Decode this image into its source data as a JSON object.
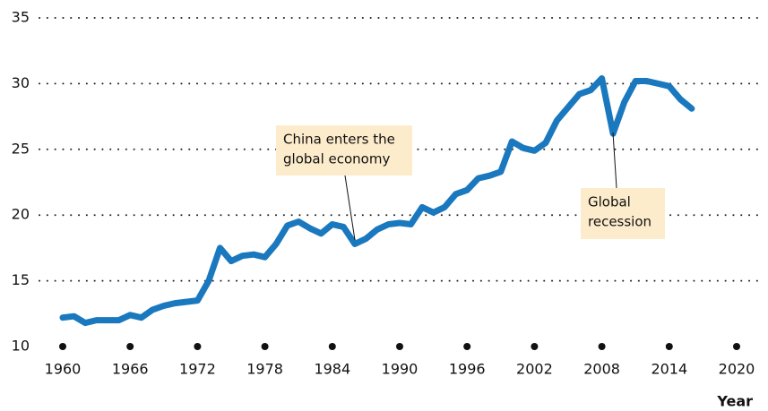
{
  "chart_data": {
    "type": "line",
    "x": [
      1960,
      1961,
      1962,
      1963,
      1964,
      1965,
      1966,
      1967,
      1968,
      1969,
      1970,
      1971,
      1972,
      1973,
      1974,
      1975,
      1976,
      1977,
      1978,
      1979,
      1980,
      1981,
      1982,
      1983,
      1984,
      1985,
      1986,
      1987,
      1988,
      1989,
      1990,
      1991,
      1992,
      1993,
      1994,
      1995,
      1996,
      1997,
      1998,
      1999,
      2000,
      2001,
      2002,
      2003,
      2004,
      2005,
      2006,
      2007,
      2008,
      2009,
      2010,
      2011,
      2012,
      2013,
      2014,
      2015,
      2016
    ],
    "series": [
      {
        "color": "#1a78be",
        "values": [
          12.2,
          12.3,
          11.8,
          12.0,
          12.0,
          12.0,
          12.4,
          12.2,
          12.8,
          13.1,
          13.3,
          13.4,
          13.5,
          15.0,
          17.5,
          16.5,
          16.9,
          17.0,
          16.8,
          17.8,
          19.2,
          19.5,
          19.0,
          18.6,
          19.3,
          19.1,
          17.8,
          18.2,
          18.9,
          19.3,
          19.4,
          19.3,
          20.6,
          20.2,
          20.6,
          21.6,
          21.9,
          22.8,
          23.0,
          23.3,
          25.6,
          25.1,
          24.9,
          25.5,
          27.2,
          28.2,
          29.2,
          29.5,
          30.4,
          26.2,
          28.6,
          30.2,
          30.2,
          30.0,
          29.8,
          28.8,
          28.1
        ]
      }
    ],
    "xlim": [
      1960,
      2020
    ],
    "xticks": [
      1960,
      1966,
      1972,
      1978,
      1984,
      1990,
      1996,
      2002,
      2008,
      2014,
      2020
    ],
    "ylim": [
      10,
      35
    ],
    "yticks": [
      10,
      15,
      20,
      25,
      30,
      35
    ],
    "grid": true,
    "xlabel": "Year",
    "annotations": [
      {
        "text": [
          "China enters the",
          "global economy"
        ]
      },
      {
        "text": [
          "Global",
          "recession"
        ]
      }
    ]
  }
}
